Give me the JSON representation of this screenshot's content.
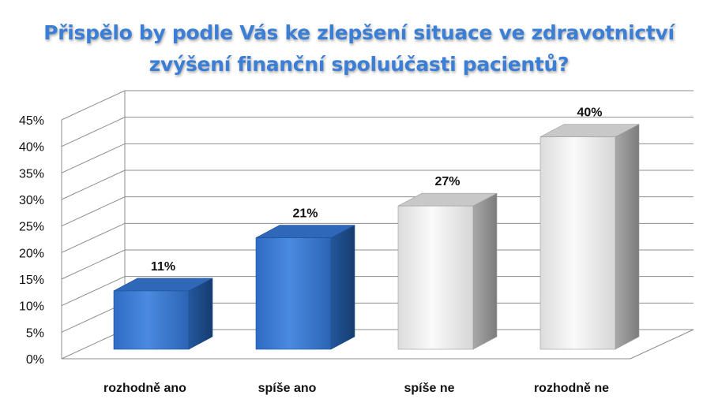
{
  "chart_data": {
    "type": "bar",
    "title_lines": [
      "Přispělo by podle Vás ke zlepšení situace ve zdravotnictví",
      "zvýšení finanční spoluúčasti pacientů?"
    ],
    "categories": [
      "rozhodně ano",
      "spíše ano",
      "spíše ne",
      "rozhodně ne"
    ],
    "values": [
      11,
      21,
      27,
      40
    ],
    "data_labels": [
      "11%",
      "21%",
      "27%",
      "40%"
    ],
    "y_ticks": [
      "0%",
      "5%",
      "10%",
      "15%",
      "20%",
      "25%",
      "30%",
      "35%",
      "40%",
      "45%"
    ],
    "ylim": [
      0,
      45
    ],
    "grid": true,
    "three_d": true,
    "colors": {
      "blue_front": "#3f7fd4",
      "blue_side": "#1d4c8c",
      "blue_top": "#2f68b8",
      "gray_front": "#f2f2f2",
      "gray_side": "#9a9a9a",
      "gray_top": "#c8c8c8",
      "title": "#3a7ed6"
    },
    "bar_color_groups": [
      "blue",
      "blue",
      "gray",
      "gray"
    ]
  }
}
